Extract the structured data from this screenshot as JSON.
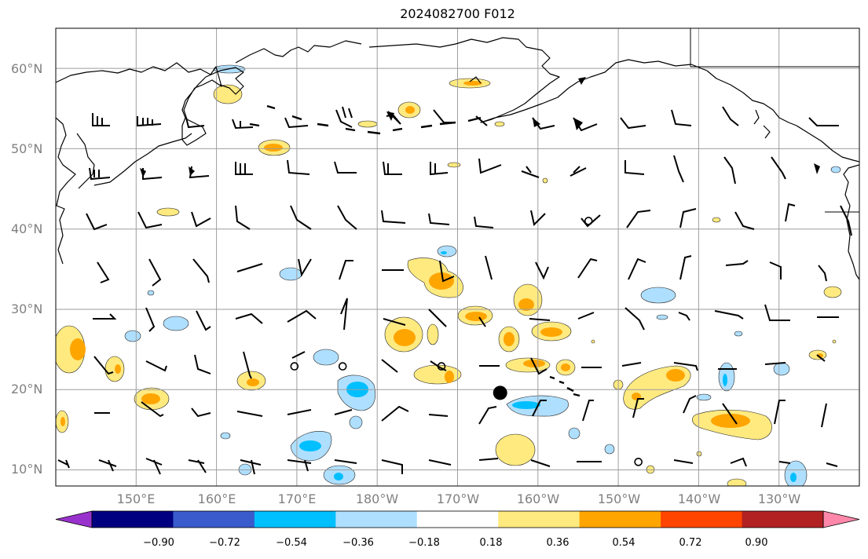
{
  "title": "2024082700 F012",
  "lat_labels": [
    "60°N",
    "50°N",
    "40°N",
    "30°N",
    "20°N",
    "10°N"
  ],
  "lon_labels": [
    "150°E",
    "160°E",
    "170°E",
    "180°W",
    "170°W",
    "160°W",
    "150°W",
    "140°W",
    "130°W"
  ],
  "colorbar": {
    "ticks": [
      "−0.90",
      "−0.72",
      "−0.54",
      "−0.36",
      "−0.18",
      "0.18",
      "0.36",
      "0.54",
      "0.72",
      "0.90"
    ],
    "colors": [
      "#9932cc",
      "#000080",
      "#3a5bcb",
      "#00bfff",
      "#afdfff",
      "#ffffff",
      "#ffea80",
      "#ffa500",
      "#ff4500",
      "#b22222",
      "#ff88aa"
    ]
  },
  "map": {
    "extent": {
      "lon_min": 140,
      "lon_max": 240,
      "lat_min": 8,
      "lat_max": 65
    },
    "gridlines": true,
    "lon_lines": [
      150,
      160,
      170,
      180,
      190,
      200,
      210,
      220,
      230
    ],
    "lat_lines": [
      10,
      20,
      30,
      40,
      50,
      60
    ],
    "colors": {
      "grid": "#9e9e9e",
      "coast": "#000000",
      "yellow": "#ffea80",
      "orange": "#ffa500",
      "lightblue": "#afdfff",
      "blue": "#00bfff"
    },
    "marker": {
      "lon": 195.3,
      "lat": 19.6
    },
    "calm_circles": [
      {
        "lon": 206.3,
        "lat": 41.0
      },
      {
        "lon": 169.7,
        "lat": 22.9
      },
      {
        "lon": 175.7,
        "lat": 22.9
      },
      {
        "lon": 188.0,
        "lat": 22.9
      },
      {
        "lon": 212.5,
        "lat": 11.0
      }
    ]
  }
}
